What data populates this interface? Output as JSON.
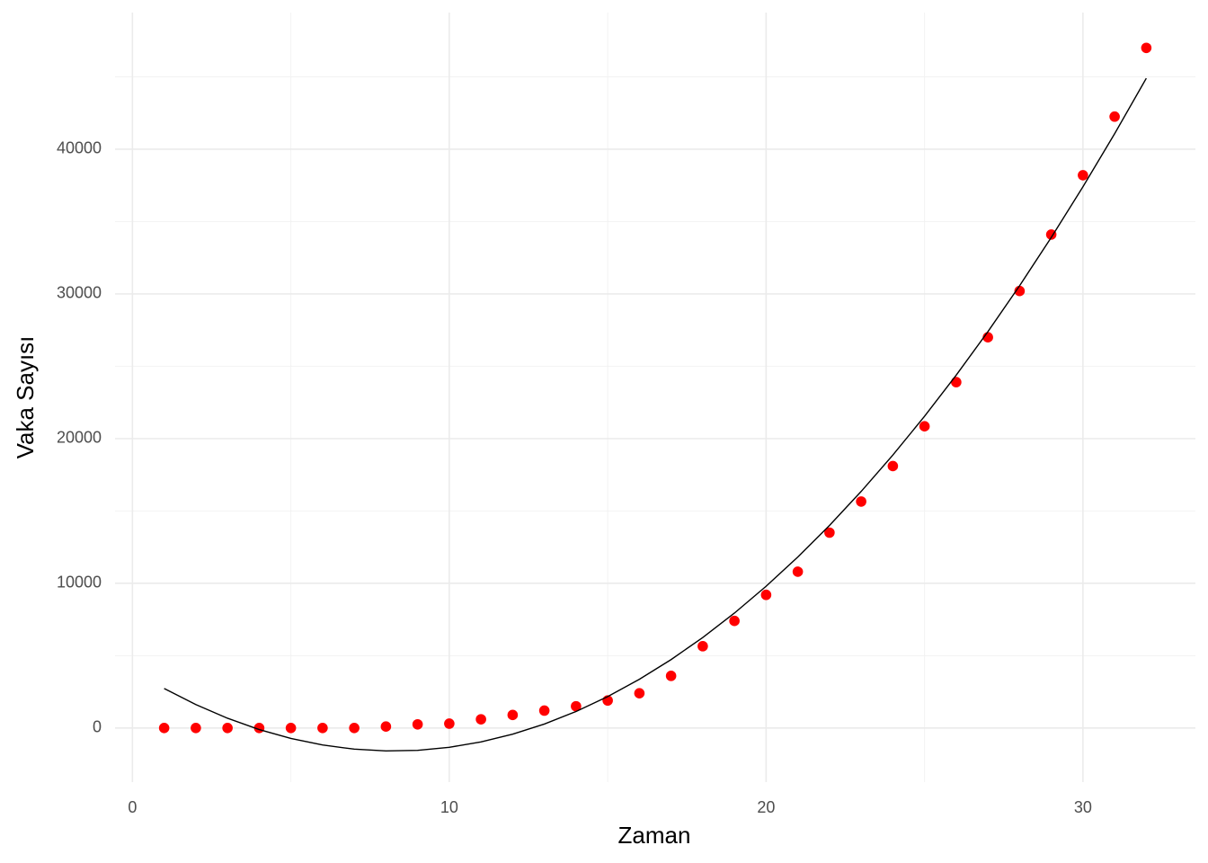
{
  "chart_data": {
    "type": "scatter",
    "x_label": "Zaman",
    "y_label": "Vaka Sayısı",
    "x": [
      1,
      2,
      3,
      4,
      5,
      6,
      7,
      8,
      9,
      10,
      11,
      12,
      13,
      14,
      15,
      16,
      17,
      18,
      19,
      20,
      21,
      22,
      23,
      24,
      25,
      26,
      27,
      28,
      29,
      30,
      31,
      32
    ],
    "series": [
      {
        "kind": "points",
        "color": "#ff0000",
        "values": [
          0,
          0,
          0,
          0,
          0,
          0,
          0,
          100,
          250,
          300,
          600,
          900,
          1200,
          1500,
          1900,
          2400,
          3600,
          5650,
          7400,
          9200,
          10800,
          13500,
          15650,
          18100,
          20850,
          23900,
          27000,
          30200,
          34100,
          38200,
          42250,
          47000
        ]
      },
      {
        "kind": "line",
        "color": "#000000",
        "values": [
          2730,
          1619,
          673,
          -108,
          -725,
          -1177,
          -1464,
          -1586,
          -1544,
          -1337,
          -965,
          -428,
          273,
          1139,
          2170,
          3366,
          4726,
          6251,
          7941,
          9795,
          11815,
          13999,
          16348,
          18861,
          21539,
          24382,
          27390,
          30562,
          33900,
          37402,
          41069,
          44900
        ]
      }
    ],
    "xlim": [
      -0.55,
      33.55
    ],
    "ylim": [
      -3740,
      49440
    ],
    "xticks": [
      0,
      10,
      20,
      30
    ],
    "yticks": [
      0,
      10000,
      20000,
      30000,
      40000
    ],
    "xminor": [
      5,
      15,
      25
    ],
    "yminor": [
      5000,
      15000,
      25000,
      35000,
      45000
    ],
    "grid": true
  }
}
